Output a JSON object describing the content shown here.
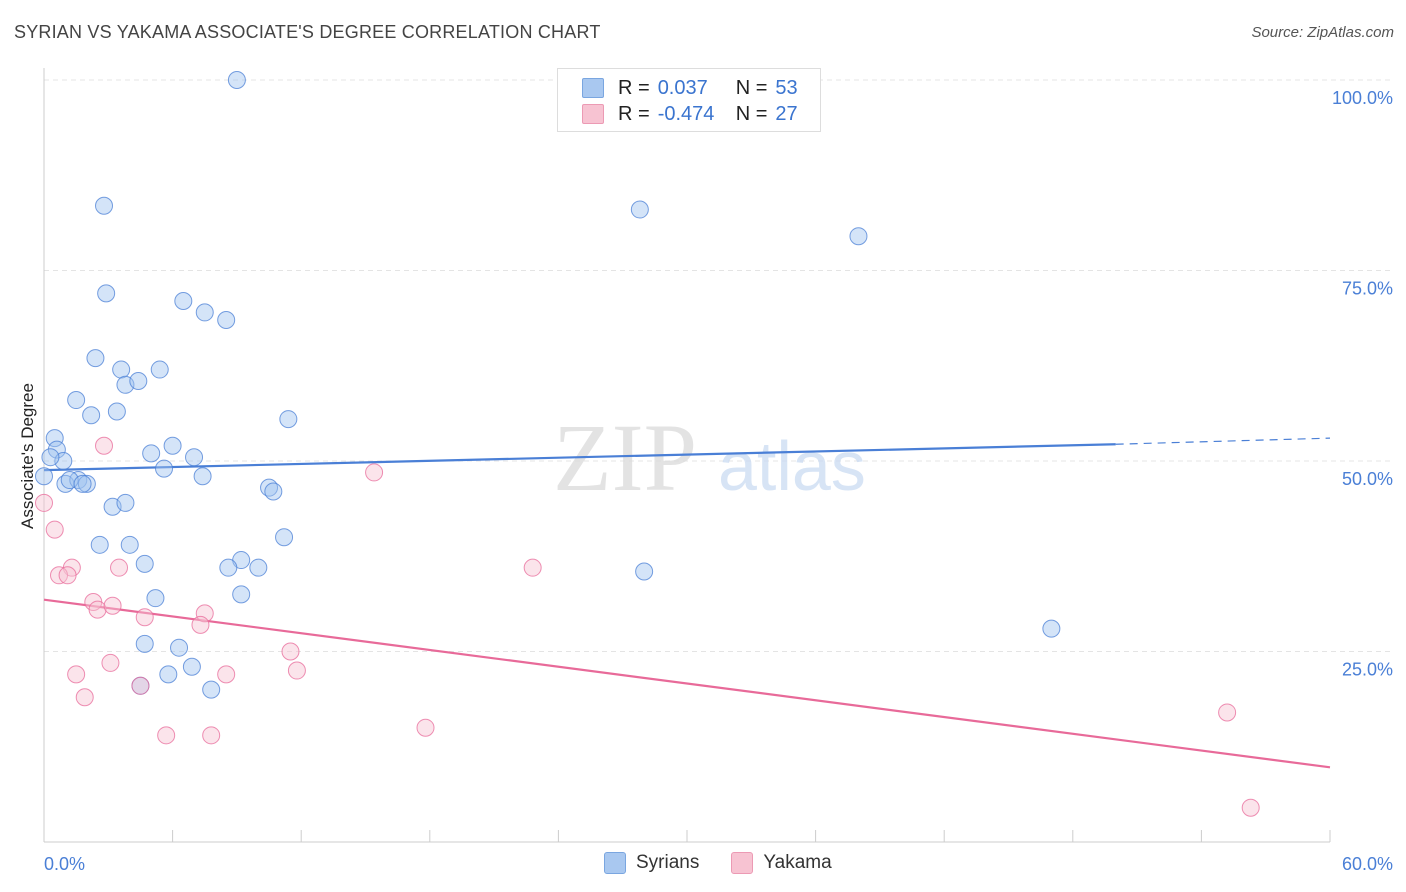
{
  "title": "SYRIAN VS YAKAMA ASSOCIATE'S DEGREE CORRELATION CHART",
  "source": "Source: ZipAtlas.com",
  "watermark": {
    "zip": "ZIP",
    "atlas": "atlas"
  },
  "legend_top": [
    {
      "r_label": "R =",
      "r_value": "0.037",
      "n_label": "N =",
      "n_value": "53",
      "color": "#a9c8f0",
      "border": "#7aa6e0"
    },
    {
      "r_label": "R =",
      "r_value": "-0.474",
      "n_label": "N =",
      "n_value": "27",
      "color": "#f7c3d2",
      "border": "#ec9ab4"
    }
  ],
  "legend_bottom": [
    {
      "label": "Syrians",
      "color": "#a9c8f0",
      "border": "#7aa6e0"
    },
    {
      "label": "Yakama",
      "color": "#f7c3d2",
      "border": "#ec9ab4"
    }
  ],
  "chart_data": {
    "type": "scatter",
    "title": "SYRIAN VS YAKAMA ASSOCIATE'S DEGREE CORRELATION CHART",
    "xlabel": "",
    "ylabel": "Associate's Degree",
    "xlim": [
      0,
      60
    ],
    "ylim": [
      0,
      100
    ],
    "x_tick_labels": [
      "0.0%",
      "60.0%"
    ],
    "y_ticks": [
      25,
      50,
      75,
      100
    ],
    "y_tick_labels": [
      "25.0%",
      "50.0%",
      "75.0%",
      "100.0%"
    ],
    "grid": true,
    "series": [
      {
        "name": "Syrians",
        "color": "#4a7fd6",
        "fill": "rgba(160,196,240,0.45)",
        "points": [
          [
            9.0,
            100.0
          ],
          [
            2.8,
            83.5
          ],
          [
            27.8,
            83.0
          ],
          [
            38.0,
            79.5
          ],
          [
            2.9,
            72.0
          ],
          [
            6.5,
            71.0
          ],
          [
            7.5,
            69.5
          ],
          [
            8.5,
            68.5
          ],
          [
            2.4,
            63.5
          ],
          [
            3.6,
            62.0
          ],
          [
            5.4,
            62.0
          ],
          [
            3.8,
            60.0
          ],
          [
            4.4,
            60.5
          ],
          [
            1.5,
            58.0
          ],
          [
            2.2,
            56.0
          ],
          [
            3.4,
            56.5
          ],
          [
            11.4,
            55.5
          ],
          [
            0.5,
            53.0
          ],
          [
            0.6,
            51.5
          ],
          [
            6.0,
            52.0
          ],
          [
            5.0,
            51.0
          ],
          [
            7.0,
            50.5
          ],
          [
            0.9,
            50.0
          ],
          [
            5.6,
            49.0
          ],
          [
            7.4,
            48.0
          ],
          [
            0.0,
            48.0
          ],
          [
            1.0,
            47.0
          ],
          [
            1.6,
            47.5
          ],
          [
            1.2,
            47.5
          ],
          [
            2.0,
            47.0
          ],
          [
            10.5,
            46.5
          ],
          [
            10.7,
            46.0
          ],
          [
            3.2,
            44.0
          ],
          [
            3.8,
            44.5
          ],
          [
            11.2,
            40.0
          ],
          [
            2.6,
            39.0
          ],
          [
            4.0,
            39.0
          ],
          [
            9.2,
            37.0
          ],
          [
            4.7,
            36.5
          ],
          [
            8.6,
            36.0
          ],
          [
            10.0,
            36.0
          ],
          [
            28.0,
            35.5
          ],
          [
            9.2,
            32.5
          ],
          [
            5.2,
            32.0
          ],
          [
            47.0,
            28.0
          ],
          [
            4.7,
            26.0
          ],
          [
            6.3,
            25.5
          ],
          [
            6.9,
            23.0
          ],
          [
            5.8,
            22.0
          ],
          [
            4.5,
            20.5
          ],
          [
            7.8,
            20.0
          ],
          [
            0.3,
            50.5
          ],
          [
            1.8,
            47.0
          ]
        ]
      },
      {
        "name": "Yakama",
        "color": "#e86a99",
        "fill": "rgba(247,195,210,0.45)",
        "points": [
          [
            2.8,
            52.0
          ],
          [
            15.4,
            48.5
          ],
          [
            0.0,
            44.5
          ],
          [
            0.5,
            41.0
          ],
          [
            1.3,
            36.0
          ],
          [
            3.5,
            36.0
          ],
          [
            22.8,
            36.0
          ],
          [
            0.7,
            35.0
          ],
          [
            1.1,
            35.0
          ],
          [
            2.3,
            31.5
          ],
          [
            2.5,
            30.5
          ],
          [
            3.2,
            31.0
          ],
          [
            7.5,
            30.0
          ],
          [
            4.7,
            29.5
          ],
          [
            7.3,
            28.5
          ],
          [
            11.5,
            25.0
          ],
          [
            3.1,
            23.5
          ],
          [
            11.8,
            22.5
          ],
          [
            1.5,
            22.0
          ],
          [
            8.5,
            22.0
          ],
          [
            4.5,
            20.5
          ],
          [
            1.9,
            19.0
          ],
          [
            17.8,
            15.0
          ],
          [
            5.7,
            14.0
          ],
          [
            7.8,
            14.0
          ],
          [
            55.2,
            17.0
          ],
          [
            56.3,
            4.5
          ]
        ]
      }
    ],
    "trend_lines": [
      {
        "series": "Syrians",
        "x": [
          0,
          50
        ],
        "y": [
          48.8,
          52.2
        ],
        "dashed_x": [
          50,
          60
        ],
        "dashed_y": [
          52.2,
          53.0
        ]
      },
      {
        "series": "Yakama",
        "x": [
          0,
          60
        ],
        "y": [
          31.8,
          9.8
        ]
      }
    ]
  }
}
